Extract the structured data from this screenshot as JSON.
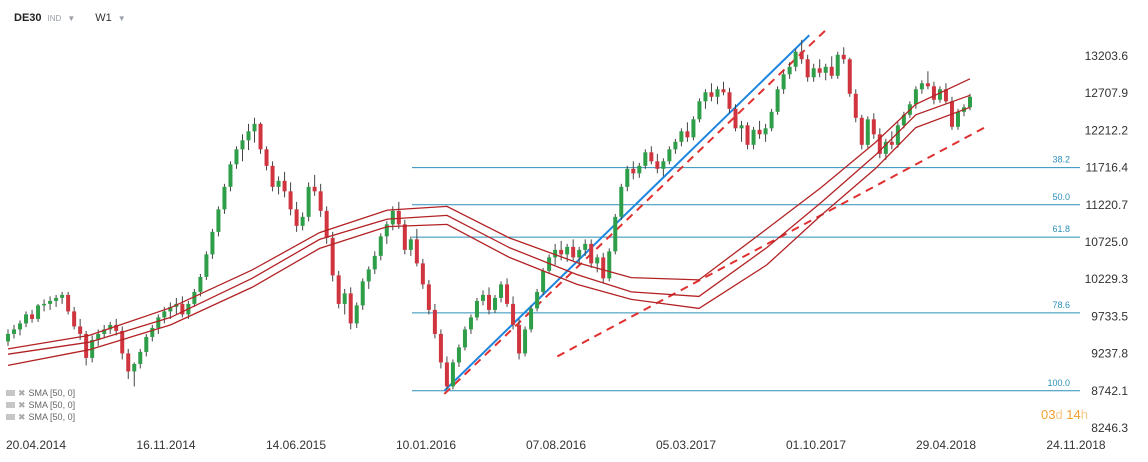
{
  "header": {
    "symbol": "DE30",
    "indicator_label": "IND",
    "timeframe": "W1",
    "dropdown_icon": "chevron-down-icon"
  },
  "timer": {
    "days": "03",
    "days_unit": "d",
    "hours": "14",
    "hours_unit": "h"
  },
  "legend": {
    "items": [
      {
        "label": "SMA [50,  0]"
      },
      {
        "label": "SMA [50,  0]"
      },
      {
        "label": "SMA [50,  0]"
      }
    ],
    "icons": [
      "eye-icon",
      "close-icon"
    ]
  },
  "colors": {
    "up": "#2e9e48",
    "down": "#d0343f",
    "sma": "#b32224",
    "fib": "#2c8fb8",
    "trend_solid": "#1f86e0",
    "trend_dashed": "#e03030",
    "axis_text": "#333333"
  },
  "chart_data": {
    "type": "candlestick",
    "title": "",
    "xlabel": "",
    "ylabel": "",
    "ylim": [
      8200,
      13650
    ],
    "y_ticks": [
      "13203.6",
      "12707.9",
      "12212.2",
      "11716.4",
      "11220.7",
      "10725.0",
      "10229.3",
      "9733.5",
      "9237.8",
      "8742.1",
      "8246.3"
    ],
    "x_ticks": [
      "20.04.2014",
      "16.11.2014",
      "14.06.2015",
      "10.01.2016",
      "07.08.2016",
      "05.03.2017",
      "01.10.2017",
      "29.04.2018",
      "24.11.2018"
    ],
    "x_range": [
      "2014-04-20",
      "2018-11-24"
    ],
    "fibonacci": [
      {
        "level": "38.2",
        "value": 11716.4
      },
      {
        "level": "50.0",
        "value": 11220.7
      },
      {
        "level": "61.8",
        "value": 10790
      },
      {
        "level": "78.6",
        "value": 9780
      },
      {
        "level": "100.0",
        "value": 8742.1
      }
    ],
    "trend_lines": [
      {
        "style": "solid",
        "from": {
          "x": "2016-02-07",
          "y": 8742
        },
        "to": {
          "x": "2017-09-17",
          "y": 13480
        }
      },
      {
        "style": "dashed",
        "from": {
          "x": "2016-02-07",
          "y": 8700
        },
        "to": {
          "x": "2017-10-15",
          "y": 13560
        }
      },
      {
        "style": "dashed",
        "from": {
          "x": "2016-08-07",
          "y": 9200
        },
        "to": {
          "x": "2018-07-01",
          "y": 12270
        }
      }
    ],
    "series": [
      {
        "name": "SMA [50,  0]",
        "type": "line",
        "points": [
          [
            0,
            9300
          ],
          [
            30,
            9480
          ],
          [
            60,
            9850
          ],
          [
            90,
            10350
          ],
          [
            115,
            10850
          ],
          [
            140,
            11150
          ],
          [
            162,
            11200
          ],
          [
            185,
            10780
          ],
          [
            210,
            10450
          ],
          [
            230,
            10250
          ],
          [
            255,
            10220
          ],
          [
            280,
            10900
          ],
          [
            300,
            11450
          ],
          [
            320,
            12050
          ],
          [
            335,
            12560
          ],
          [
            355,
            12900
          ]
        ]
      },
      {
        "name": "SMA [50,  0]",
        "type": "line",
        "points": [
          [
            0,
            9230
          ],
          [
            30,
            9390
          ],
          [
            60,
            9720
          ],
          [
            90,
            10240
          ],
          [
            115,
            10760
          ],
          [
            140,
            11030
          ],
          [
            162,
            11080
          ],
          [
            185,
            10650
          ],
          [
            210,
            10290
          ],
          [
            230,
            10060
          ],
          [
            255,
            10000
          ],
          [
            280,
            10650
          ],
          [
            300,
            11250
          ],
          [
            320,
            11880
          ],
          [
            335,
            12420
          ],
          [
            355,
            12680
          ]
        ]
      },
      {
        "name": "SMA [50,  0]",
        "type": "line",
        "points": [
          [
            0,
            9080
          ],
          [
            30,
            9290
          ],
          [
            60,
            9620
          ],
          [
            90,
            10120
          ],
          [
            115,
            10640
          ],
          [
            140,
            10930
          ],
          [
            162,
            10960
          ],
          [
            185,
            10520
          ],
          [
            210,
            10160
          ],
          [
            230,
            9960
          ],
          [
            255,
            9840
          ],
          [
            280,
            10420
          ],
          [
            300,
            11080
          ],
          [
            320,
            11700
          ],
          [
            335,
            12250
          ],
          [
            355,
            12520
          ]
        ]
      }
    ],
    "candles_ohlc": [
      [
        9400,
        9560,
        9340,
        9500
      ],
      [
        9500,
        9620,
        9440,
        9560
      ],
      [
        9560,
        9680,
        9480,
        9640
      ],
      [
        9640,
        9800,
        9590,
        9760
      ],
      [
        9760,
        9820,
        9650,
        9700
      ],
      [
        9700,
        9900,
        9660,
        9880
      ],
      [
        9880,
        9960,
        9800,
        9900
      ],
      [
        9900,
        10000,
        9820,
        9940
      ],
      [
        9940,
        10020,
        9860,
        9980
      ],
      [
        9980,
        10060,
        9900,
        10020
      ],
      [
        10020,
        10060,
        9760,
        9800
      ],
      [
        9800,
        9860,
        9560,
        9600
      ],
      [
        9600,
        9700,
        9420,
        9500
      ],
      [
        9500,
        9540,
        9080,
        9180
      ],
      [
        9180,
        9480,
        9120,
        9420
      ],
      [
        9420,
        9560,
        9340,
        9500
      ],
      [
        9500,
        9620,
        9440,
        9560
      ],
      [
        9560,
        9660,
        9500,
        9620
      ],
      [
        9620,
        9700,
        9480,
        9540
      ],
      [
        9540,
        9600,
        9160,
        9240
      ],
      [
        9240,
        9300,
        8900,
        9000
      ],
      [
        9000,
        9120,
        8800,
        9100
      ],
      [
        9100,
        9300,
        9040,
        9260
      ],
      [
        9260,
        9500,
        9200,
        9460
      ],
      [
        9460,
        9620,
        9400,
        9580
      ],
      [
        9580,
        9760,
        9500,
        9720
      ],
      [
        9720,
        9860,
        9640,
        9800
      ],
      [
        9800,
        9920,
        9700,
        9860
      ],
      [
        9860,
        9980,
        9760,
        9900
      ],
      [
        9900,
        10000,
        9720,
        9760
      ],
      [
        9760,
        9940,
        9700,
        9900
      ],
      [
        9900,
        10100,
        9860,
        10060
      ],
      [
        10060,
        10300,
        10000,
        10260
      ],
      [
        10260,
        10600,
        10220,
        10560
      ],
      [
        10560,
        10900,
        10500,
        10860
      ],
      [
        10860,
        11200,
        10800,
        11160
      ],
      [
        11160,
        11500,
        11100,
        11460
      ],
      [
        11460,
        11800,
        11400,
        11760
      ],
      [
        11760,
        12000,
        11700,
        11960
      ],
      [
        11960,
        12160,
        11800,
        12080
      ],
      [
        12080,
        12300,
        11950,
        12200
      ],
      [
        12200,
        12380,
        12050,
        12300
      ],
      [
        12300,
        12320,
        11900,
        11960
      ],
      [
        11960,
        12000,
        11680,
        11740
      ],
      [
        11740,
        11800,
        11400,
        11460
      ],
      [
        11460,
        11600,
        11360,
        11540
      ],
      [
        11540,
        11660,
        11320,
        11400
      ],
      [
        11400,
        11520,
        11080,
        11160
      ],
      [
        11160,
        11260,
        10860,
        10940
      ],
      [
        10940,
        11120,
        10880,
        11060
      ],
      [
        11060,
        11520,
        11000,
        11460
      ],
      [
        11460,
        11620,
        11340,
        11400
      ],
      [
        11400,
        11500,
        11060,
        11140
      ],
      [
        11140,
        11200,
        10700,
        10780
      ],
      [
        10780,
        10860,
        10200,
        10280
      ],
      [
        10280,
        10340,
        9840,
        9900
      ],
      [
        9900,
        10100,
        9760,
        10040
      ],
      [
        10040,
        10120,
        9560,
        9640
      ],
      [
        9640,
        9920,
        9580,
        9880
      ],
      [
        9880,
        10240,
        9820,
        10200
      ],
      [
        10200,
        10400,
        10100,
        10360
      ],
      [
        10360,
        10600,
        10300,
        10540
      ],
      [
        10540,
        10840,
        10480,
        10800
      ],
      [
        10800,
        11000,
        10700,
        10960
      ],
      [
        10960,
        11200,
        10880,
        11140
      ],
      [
        11140,
        11260,
        10900,
        10960
      ],
      [
        10960,
        11020,
        10560,
        10620
      ],
      [
        10620,
        10800,
        10540,
        10760
      ],
      [
        10760,
        10900,
        10400,
        10440
      ],
      [
        10440,
        10500,
        10100,
        10160
      ],
      [
        10160,
        10220,
        9760,
        9820
      ],
      [
        9820,
        9900,
        9440,
        9500
      ],
      [
        9500,
        9560,
        9040,
        9120
      ],
      [
        9120,
        9200,
        8760,
        8800
      ],
      [
        8800,
        9160,
        8760,
        9120
      ],
      [
        9120,
        9360,
        9060,
        9320
      ],
      [
        9320,
        9600,
        9280,
        9560
      ],
      [
        9560,
        9760,
        9500,
        9720
      ],
      [
        9720,
        9980,
        9680,
        9940
      ],
      [
        9940,
        10080,
        9880,
        10020
      ],
      [
        10020,
        10120,
        9760,
        9820
      ],
      [
        9820,
        10020,
        9780,
        9980
      ],
      [
        9980,
        10200,
        9920,
        10160
      ],
      [
        10160,
        10240,
        9860,
        9900
      ],
      [
        9900,
        10000,
        9560,
        9620
      ],
      [
        9620,
        9700,
        9160,
        9240
      ],
      [
        9240,
        9600,
        9200,
        9560
      ],
      [
        9560,
        9880,
        9520,
        9840
      ],
      [
        9840,
        10100,
        9800,
        10060
      ],
      [
        10060,
        10380,
        10020,
        10340
      ],
      [
        10340,
        10560,
        10300,
        10520
      ],
      [
        10520,
        10700,
        10420,
        10620
      ],
      [
        10620,
        10740,
        10480,
        10560
      ],
      [
        10560,
        10700,
        10460,
        10660
      ],
      [
        10660,
        10760,
        10480,
        10520
      ],
      [
        10520,
        10660,
        10420,
        10620
      ],
      [
        10620,
        10760,
        10540,
        10700
      ],
      [
        10700,
        10760,
        10380,
        10440
      ],
      [
        10440,
        10560,
        10320,
        10520
      ],
      [
        10520,
        10580,
        10180,
        10240
      ],
      [
        10240,
        10640,
        10200,
        10600
      ],
      [
        10600,
        11100,
        10560,
        11060
      ],
      [
        11060,
        11500,
        11020,
        11460
      ],
      [
        11460,
        11740,
        11400,
        11700
      ],
      [
        11700,
        11800,
        11560,
        11640
      ],
      [
        11640,
        11780,
        11580,
        11740
      ],
      [
        11740,
        11960,
        11700,
        11920
      ],
      [
        11920,
        12000,
        11760,
        11800
      ],
      [
        11800,
        11900,
        11640,
        11700
      ],
      [
        11700,
        11840,
        11600,
        11800
      ],
      [
        11800,
        12000,
        11760,
        11960
      ],
      [
        11960,
        12100,
        11900,
        12060
      ],
      [
        12060,
        12240,
        12000,
        12200
      ],
      [
        12200,
        12320,
        12060,
        12120
      ],
      [
        12120,
        12400,
        12080,
        12360
      ],
      [
        12360,
        12640,
        12320,
        12600
      ],
      [
        12600,
        12760,
        12500,
        12720
      ],
      [
        12720,
        12840,
        12600,
        12660
      ],
      [
        12660,
        12800,
        12560,
        12760
      ],
      [
        12760,
        12860,
        12680,
        12720
      ],
      [
        12720,
        12780,
        12440,
        12500
      ],
      [
        12500,
        12560,
        12200,
        12240
      ],
      [
        12240,
        12340,
        12060,
        12280
      ],
      [
        12280,
        12320,
        11960,
        12020
      ],
      [
        12020,
        12260,
        11960,
        12220
      ],
      [
        12220,
        12340,
        12100,
        12160
      ],
      [
        12160,
        12300,
        12060,
        12240
      ],
      [
        12240,
        12500,
        12200,
        12460
      ],
      [
        12460,
        12800,
        12420,
        12760
      ],
      [
        12760,
        13000,
        12700,
        12960
      ],
      [
        12960,
        13120,
        12900,
        13060
      ],
      [
        13060,
        13300,
        13000,
        13260
      ],
      [
        13260,
        13420,
        13100,
        13160
      ],
      [
        13160,
        13220,
        12860,
        12920
      ],
      [
        12920,
        13100,
        12860,
        13040
      ],
      [
        13040,
        13160,
        12920,
        12980
      ],
      [
        12980,
        13100,
        12880,
        13060
      ],
      [
        13060,
        13200,
        12900,
        12940
      ],
      [
        12940,
        13260,
        12900,
        13220
      ],
      [
        13220,
        13320,
        13100,
        13160
      ],
      [
        13160,
        13180,
        12660,
        12700
      ],
      [
        12700,
        12760,
        12320,
        12380
      ],
      [
        12380,
        12420,
        11960,
        12020
      ],
      [
        12020,
        12400,
        11980,
        12360
      ],
      [
        12360,
        12440,
        12100,
        12160
      ],
      [
        12160,
        12240,
        11840,
        11900
      ],
      [
        11900,
        12100,
        11820,
        12060
      ],
      [
        12060,
        12200,
        11960,
        12020
      ],
      [
        12020,
        12320,
        11980,
        12280
      ],
      [
        12280,
        12460,
        12240,
        12420
      ],
      [
        12420,
        12600,
        12380,
        12560
      ],
      [
        12560,
        12800,
        12500,
        12760
      ],
      [
        12760,
        12880,
        12700,
        12840
      ],
      [
        12840,
        13000,
        12760,
        12800
      ],
      [
        12800,
        12860,
        12560,
        12620
      ],
      [
        12620,
        12800,
        12580,
        12760
      ],
      [
        12760,
        12840,
        12560,
        12600
      ],
      [
        12600,
        12660,
        12220,
        12260
      ],
      [
        12260,
        12500,
        12220,
        12460
      ],
      [
        12460,
        12560,
        12400,
        12520
      ],
      [
        12520,
        12700,
        12480,
        12660
      ]
    ]
  }
}
